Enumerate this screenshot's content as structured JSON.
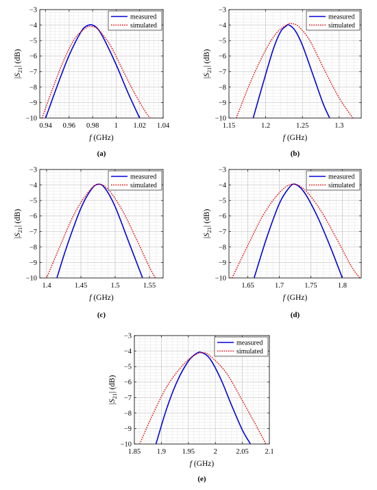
{
  "figure_captions": [
    "(a)",
    "(b)",
    "(c)",
    "(d)",
    "(e)"
  ],
  "colors": {
    "measured": "#0000dd",
    "simulated": "#dd0000"
  },
  "chart_data": [
    {
      "type": "line",
      "caption": "(a)",
      "xlabel": "f (GHz)",
      "ylabel": "|S21| (dB)",
      "xlim": [
        0.935,
        1.04
      ],
      "ylim": [
        -10,
        -3
      ],
      "xticks": [
        0.94,
        0.96,
        0.98,
        1,
        1.02,
        1.04
      ],
      "xtick_labels": [
        "0.94",
        "0.96",
        "0.98",
        "1",
        "1.02",
        "1.04"
      ],
      "yticks": [
        -10,
        -9,
        -8,
        -7,
        -6,
        -5,
        -4,
        -3
      ],
      "grid": true,
      "legend_position": "top-right",
      "series": [
        {
          "name": "measured",
          "style": "solid",
          "x": [
            0.94,
            0.95,
            0.96,
            0.97,
            0.975,
            0.98,
            0.985,
            0.99,
            1.0,
            1.01,
            1.02,
            1.022
          ],
          "y": [
            -10.0,
            -7.9,
            -5.95,
            -4.45,
            -4.05,
            -4.0,
            -4.3,
            -4.95,
            -6.55,
            -8.35,
            -10.0,
            -10.3
          ]
        },
        {
          "name": "simulated",
          "style": "dotted",
          "x": [
            0.937,
            0.945,
            0.955,
            0.965,
            0.975,
            0.98,
            0.985,
            0.995,
            1.005,
            1.015,
            1.025,
            1.03
          ],
          "y": [
            -10.0,
            -8.3,
            -6.35,
            -4.85,
            -4.15,
            -4.1,
            -4.3,
            -5.3,
            -6.8,
            -8.3,
            -9.6,
            -10.1
          ]
        }
      ]
    },
    {
      "type": "line",
      "caption": "(b)",
      "xlabel": "f (GHz)",
      "ylabel": "|S21| (dB)",
      "xlim": [
        1.15,
        1.33
      ],
      "ylim": [
        -10,
        -3
      ],
      "xticks": [
        1.15,
        1.2,
        1.25,
        1.3
      ],
      "xtick_labels": [
        "1.15",
        "1.2",
        "1.25",
        "1.3"
      ],
      "yticks": [
        -10,
        -9,
        -8,
        -7,
        -6,
        -5,
        -4,
        -3
      ],
      "grid": true,
      "legend_position": "top-right",
      "series": [
        {
          "name": "measured",
          "style": "solid",
          "x": [
            1.183,
            1.195,
            1.21,
            1.22,
            1.228,
            1.232,
            1.24,
            1.25,
            1.265,
            1.278,
            1.287
          ],
          "y": [
            -10.0,
            -8.0,
            -5.6,
            -4.45,
            -4.05,
            -4.0,
            -4.35,
            -5.3,
            -7.3,
            -9.05,
            -10.0
          ]
        },
        {
          "name": "simulated",
          "style": "dotted",
          "x": [
            1.16,
            1.18,
            1.2,
            1.215,
            1.228,
            1.235,
            1.245,
            1.26,
            1.28,
            1.3,
            1.32
          ],
          "y": [
            -10.0,
            -7.6,
            -5.6,
            -4.5,
            -4.0,
            -3.9,
            -4.1,
            -5.0,
            -6.9,
            -8.7,
            -10.1
          ]
        }
      ]
    },
    {
      "type": "line",
      "caption": "(c)",
      "xlabel": "f (GHz)",
      "ylabel": "|S21| (dB)",
      "xlim": [
        1.39,
        1.57
      ],
      "ylim": [
        -10,
        -3
      ],
      "xticks": [
        1.4,
        1.45,
        1.5,
        1.55
      ],
      "xtick_labels": [
        "1.4",
        "1.45",
        "1.5",
        "1.55"
      ],
      "yticks": [
        -10,
        -9,
        -8,
        -7,
        -6,
        -5,
        -4,
        -3
      ],
      "grid": true,
      "legend_position": "top-right",
      "series": [
        {
          "name": "measured",
          "style": "solid",
          "x": [
            1.415,
            1.43,
            1.45,
            1.465,
            1.475,
            1.485,
            1.5,
            1.52,
            1.54
          ],
          "y": [
            -10.0,
            -7.9,
            -5.5,
            -4.3,
            -3.95,
            -4.2,
            -5.4,
            -7.7,
            -10.0
          ]
        },
        {
          "name": "simulated",
          "style": "dotted",
          "x": [
            1.4,
            1.42,
            1.44,
            1.46,
            1.475,
            1.49,
            1.51,
            1.53,
            1.55,
            1.56
          ],
          "y": [
            -10.0,
            -7.9,
            -5.9,
            -4.5,
            -3.95,
            -4.3,
            -5.6,
            -7.4,
            -9.3,
            -10.1
          ]
        }
      ]
    },
    {
      "type": "line",
      "caption": "(d)",
      "xlabel": "f (GHz)",
      "ylabel": "|S21| (dB)",
      "xlim": [
        1.62,
        1.83
      ],
      "ylim": [
        -10,
        -3
      ],
      "xticks": [
        1.65,
        1.7,
        1.75,
        1.8
      ],
      "xtick_labels": [
        "1.65",
        "1.7",
        "1.75",
        "1.8"
      ],
      "yticks": [
        -10,
        -9,
        -8,
        -7,
        -6,
        -5,
        -4,
        -3
      ],
      "grid": true,
      "legend_position": "top-right",
      "series": [
        {
          "name": "measured",
          "style": "solid",
          "x": [
            1.66,
            1.68,
            1.7,
            1.715,
            1.725,
            1.74,
            1.76,
            1.78,
            1.8
          ],
          "y": [
            -10.0,
            -7.4,
            -5.2,
            -4.2,
            -3.95,
            -4.5,
            -6.0,
            -7.9,
            -10.0
          ]
        },
        {
          "name": "simulated",
          "style": "dotted",
          "x": [
            1.625,
            1.65,
            1.675,
            1.7,
            1.72,
            1.74,
            1.765,
            1.79,
            1.815,
            1.83
          ],
          "y": [
            -10.0,
            -7.9,
            -5.9,
            -4.5,
            -3.95,
            -4.3,
            -5.6,
            -7.4,
            -9.3,
            -10.1
          ]
        }
      ]
    },
    {
      "type": "line",
      "caption": "(e)",
      "xlabel": "f (GHz)",
      "ylabel": "|S21| (dB)",
      "xlim": [
        1.85,
        2.1
      ],
      "ylim": [
        -10,
        -3
      ],
      "xticks": [
        1.85,
        1.9,
        1.95,
        2,
        2.05,
        2.1
      ],
      "xtick_labels": [
        "1.85",
        "1.9",
        "1.95",
        "2",
        "2.05",
        "2.1"
      ],
      "yticks": [
        -10,
        -9,
        -8,
        -7,
        -6,
        -5,
        -4,
        -3
      ],
      "grid": true,
      "legend_position": "top-right",
      "series": [
        {
          "name": "measured",
          "style": "solid",
          "x": [
            1.89,
            1.91,
            1.93,
            1.95,
            1.965,
            1.975,
            1.99,
            2.01,
            2.03,
            2.05,
            2.065
          ],
          "y": [
            -10.0,
            -7.7,
            -5.9,
            -4.65,
            -4.15,
            -4.1,
            -4.5,
            -5.8,
            -7.5,
            -9.1,
            -10.0
          ]
        },
        {
          "name": "simulated",
          "style": "dotted",
          "x": [
            1.86,
            1.88,
            1.91,
            1.94,
            1.96,
            1.975,
            1.99,
            2.02,
            2.05,
            2.08,
            2.095
          ],
          "y": [
            -10.0,
            -8.4,
            -6.3,
            -4.9,
            -4.3,
            -4.1,
            -4.3,
            -5.4,
            -7.2,
            -9.1,
            -10.1
          ]
        }
      ]
    }
  ]
}
